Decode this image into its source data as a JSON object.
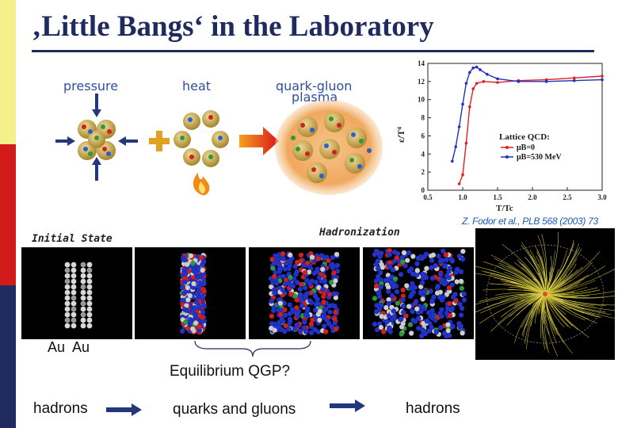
{
  "slide": {
    "title": "‚Little Bangs‘ in the Laboratory"
  },
  "illustration": {
    "pressure_label": "pressure",
    "heat_label": "heat",
    "qgp_label_line1": "quark-gluon",
    "qgp_label_line2": "plasma"
  },
  "lattice_chart": {
    "ylabel": "ε/T⁴",
    "xlabel": "T/Tc",
    "legend_title": "Lattice QCD:",
    "credit": "Z. Fodor et al., PLB 568 (2003) 73"
  },
  "chart_data": {
    "type": "line",
    "title": "Lattice QCD:",
    "xlabel": "T/Tc",
    "ylabel": "ε/T⁴",
    "xlim": [
      0.5,
      3.0
    ],
    "ylim": [
      0,
      14
    ],
    "xticks": [
      "0.5",
      "1.0",
      "1.5",
      "2.0",
      "2.5",
      "3.0"
    ],
    "yticks": [
      "0",
      "2",
      "4",
      "6",
      "8",
      "10",
      "12",
      "14"
    ],
    "series": [
      {
        "name": "μB=0",
        "color": "#e02020",
        "x": [
          0.95,
          1.0,
          1.05,
          1.1,
          1.15,
          1.2,
          1.3,
          1.5,
          1.8,
          2.2,
          2.6,
          3.0
        ],
        "y": [
          0.7,
          1.7,
          5.2,
          9.2,
          11.2,
          11.8,
          12.0,
          11.9,
          12.1,
          12.2,
          12.4,
          12.6
        ]
      },
      {
        "name": "μB=530 MeV",
        "color": "#2030c0",
        "x": [
          0.85,
          0.9,
          0.95,
          1.0,
          1.05,
          1.1,
          1.15,
          1.2,
          1.25,
          1.35,
          1.5,
          1.8,
          2.2,
          2.6,
          3.0
        ],
        "y": [
          3.2,
          4.8,
          7.0,
          9.5,
          11.8,
          13.0,
          13.5,
          13.6,
          13.3,
          12.8,
          12.3,
          12.0,
          12.0,
          12.1,
          12.2
        ]
      }
    ]
  },
  "collision": {
    "initial_state_label": "Initial State",
    "hadronization_label": "Hadronization",
    "au_label": "Au  Au",
    "equilibrium_label": "Equilibrium QGP?"
  },
  "flow": {
    "item1": "hadrons",
    "item2": "quarks and gluons",
    "item3": "hadrons"
  },
  "colors": {
    "title": "#1f2a5e",
    "bar_yellow": "#f6f08a",
    "bar_red": "#d31a1a",
    "bar_navy": "#1f2a5e",
    "arrow": "#22387a"
  }
}
